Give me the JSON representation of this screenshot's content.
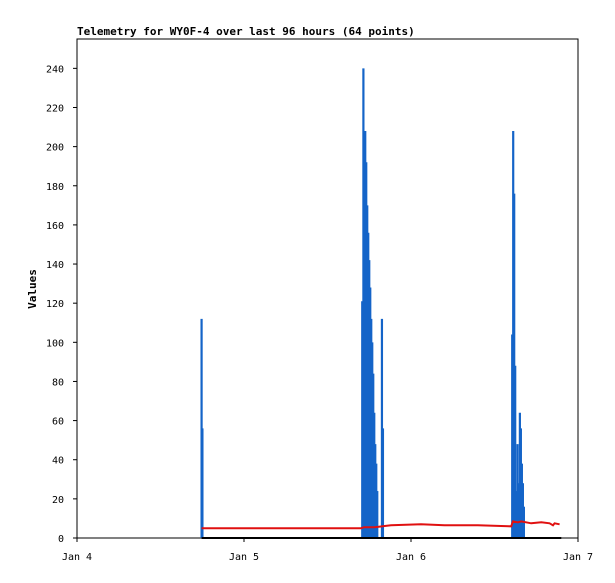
{
  "chart_data": {
    "type": "line",
    "title": "Telemetry for WY0F-4 over last 96 hours (64 points)",
    "xlabel": "",
    "ylabel": "Values",
    "x_ticks": [
      "Jan 4",
      "Jan 5",
      "Jan 6",
      "Jan 7"
    ],
    "x_unit": "days since Jan 4 00:00",
    "xlim": [
      0,
      3
    ],
    "ylim": [
      0,
      255
    ],
    "y_ticks": [
      0,
      20,
      40,
      60,
      80,
      100,
      120,
      140,
      160,
      180,
      200,
      220,
      240
    ],
    "grid": false,
    "legend": "none",
    "colors": {
      "spikes": "#1464c8",
      "baseline": "#e01010",
      "zero": "#000000"
    },
    "series": [
      {
        "color": "#1464c8",
        "style": "spikes",
        "points": [
          [
            0.746,
            112
          ],
          [
            0.751,
            56
          ],
          [
            1.708,
            121
          ],
          [
            1.715,
            240
          ],
          [
            1.72,
            16
          ],
          [
            1.726,
            208
          ],
          [
            1.732,
            192
          ],
          [
            1.738,
            170
          ],
          [
            1.744,
            156
          ],
          [
            1.75,
            142
          ],
          [
            1.756,
            128
          ],
          [
            1.762,
            112
          ],
          [
            1.768,
            100
          ],
          [
            1.774,
            84
          ],
          [
            1.78,
            64
          ],
          [
            1.786,
            48
          ],
          [
            1.792,
            38
          ],
          [
            1.798,
            24
          ],
          [
            1.826,
            112
          ],
          [
            1.832,
            56
          ],
          [
            2.606,
            104
          ],
          [
            2.612,
            208
          ],
          [
            2.618,
            176
          ],
          [
            2.624,
            88
          ],
          [
            2.63,
            24
          ],
          [
            2.638,
            48
          ],
          [
            2.646,
            28
          ],
          [
            2.652,
            64
          ],
          [
            2.658,
            56
          ],
          [
            2.664,
            38
          ],
          [
            2.67,
            28
          ],
          [
            2.676,
            16
          ]
        ]
      },
      {
        "color": "#e01010",
        "style": "line",
        "points": [
          [
            0.746,
            5
          ],
          [
            1.7,
            5
          ],
          [
            1.72,
            5.5
          ],
          [
            1.78,
            5.5
          ],
          [
            1.83,
            6
          ],
          [
            1.88,
            6.5
          ],
          [
            2.06,
            7
          ],
          [
            2.2,
            6.5
          ],
          [
            2.4,
            6.5
          ],
          [
            2.6,
            6
          ],
          [
            2.61,
            8.5
          ],
          [
            2.64,
            8
          ],
          [
            2.66,
            8.5
          ],
          [
            2.72,
            7.5
          ],
          [
            2.78,
            8
          ],
          [
            2.83,
            7.5
          ],
          [
            2.85,
            6.5
          ],
          [
            2.86,
            7.5
          ],
          [
            2.89,
            7
          ]
        ]
      },
      {
        "color": "#000000",
        "style": "line",
        "points": [
          [
            0.746,
            0
          ],
          [
            2.9,
            0
          ]
        ]
      }
    ]
  }
}
